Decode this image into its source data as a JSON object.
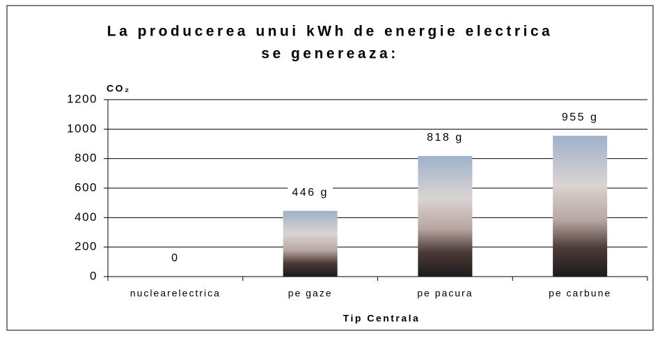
{
  "chart_data": {
    "type": "bar",
    "title": [
      "La producerea unui kWh de energie electrica",
      "se genereaza:"
    ],
    "y_label": "CO₂",
    "x_label": "Tip Centrala",
    "categories": [
      "nuclearelectrica",
      "pe gaze",
      "pe pacura",
      "pe carbune"
    ],
    "values": [
      0,
      446,
      818,
      955
    ],
    "value_labels": [
      "0",
      "446 g",
      "818 g",
      "955 g"
    ],
    "ylim": [
      0,
      1200
    ],
    "yticks": [
      0,
      200,
      400,
      600,
      800,
      1000,
      1200
    ],
    "grid": true
  }
}
